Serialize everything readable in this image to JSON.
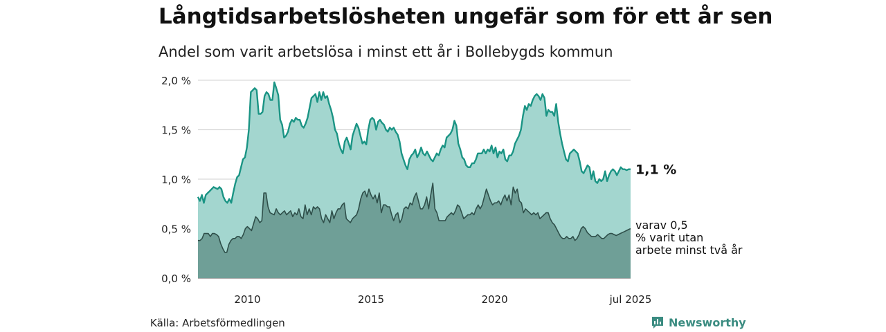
{
  "header": {
    "title": "Långtidsarbetslösheten ungefär som för ett år sen",
    "subtitle": "Andel som varit arbetslösa i minst ett år i Bollebygds kommun"
  },
  "footer": {
    "source": "Källa: Arbetsförmedlingen",
    "brand": "Newsworthy",
    "brand_icon": "bar-chart-logo-icon"
  },
  "colors": {
    "total_line": "#1a9484",
    "total_fill": "#a3d6cf",
    "sub_line": "#2f4f4a",
    "sub_fill": "#6f9f97",
    "grid": "#d9d9d9",
    "brand": "#3b8c81"
  },
  "chart_data": {
    "type": "area",
    "x_start": "2008-01",
    "x_end": "2025-07",
    "xlim": [
      "2008-01",
      "2025-07"
    ],
    "ylim": [
      0,
      2.0
    ],
    "y_ticks": [
      "0,0 %",
      "0,5 %",
      "1,0 %",
      "1,5 %",
      "2,0 %"
    ],
    "x_ticks": [
      "2010",
      "2015",
      "2020",
      "jul 2025"
    ],
    "grid": true,
    "series": [
      {
        "key": "total",
        "label": "1,1 %",
        "values": [
          0.82,
          0.78,
          0.84,
          0.76,
          0.84,
          0.86,
          0.88,
          0.9,
          0.92,
          0.91,
          0.9,
          0.92,
          0.9,
          0.82,
          0.78,
          0.76,
          0.8,
          0.76,
          0.86,
          0.95,
          1.02,
          1.04,
          1.12,
          1.2,
          1.22,
          1.32,
          1.5,
          1.88,
          1.9,
          1.92,
          1.9,
          1.66,
          1.66,
          1.68,
          1.84,
          1.88,
          1.86,
          1.8,
          1.8,
          1.98,
          1.92,
          1.85,
          1.6,
          1.55,
          1.42,
          1.44,
          1.48,
          1.56,
          1.6,
          1.58,
          1.62,
          1.6,
          1.6,
          1.54,
          1.52,
          1.56,
          1.62,
          1.72,
          1.82,
          1.84,
          1.86,
          1.78,
          1.88,
          1.8,
          1.88,
          1.82,
          1.84,
          1.76,
          1.7,
          1.62,
          1.5,
          1.46,
          1.36,
          1.3,
          1.26,
          1.38,
          1.42,
          1.36,
          1.3,
          1.44,
          1.5,
          1.56,
          1.52,
          1.44,
          1.36,
          1.38,
          1.35,
          1.5,
          1.6,
          1.62,
          1.6,
          1.5,
          1.58,
          1.6,
          1.57,
          1.55,
          1.5,
          1.48,
          1.52,
          1.5,
          1.52,
          1.48,
          1.45,
          1.38,
          1.26,
          1.2,
          1.14,
          1.1,
          1.2,
          1.24,
          1.26,
          1.3,
          1.22,
          1.26,
          1.32,
          1.26,
          1.24,
          1.28,
          1.24,
          1.2,
          1.18,
          1.22,
          1.26,
          1.24,
          1.3,
          1.34,
          1.32,
          1.42,
          1.44,
          1.46,
          1.5,
          1.59,
          1.54,
          1.36,
          1.3,
          1.22,
          1.2,
          1.14,
          1.12,
          1.12,
          1.16,
          1.16,
          1.2,
          1.26,
          1.26,
          1.26,
          1.3,
          1.26,
          1.3,
          1.28,
          1.34,
          1.26,
          1.32,
          1.22,
          1.28,
          1.26,
          1.3,
          1.2,
          1.18,
          1.24,
          1.24,
          1.28,
          1.36,
          1.4,
          1.44,
          1.5,
          1.64,
          1.74,
          1.7,
          1.76,
          1.74,
          1.8,
          1.84,
          1.86,
          1.84,
          1.8,
          1.86,
          1.82,
          1.64,
          1.7,
          1.68,
          1.68,
          1.64,
          1.76,
          1.58,
          1.46,
          1.36,
          1.28,
          1.2,
          1.18,
          1.26,
          1.28,
          1.3,
          1.28,
          1.26,
          1.18,
          1.08,
          1.06,
          1.1,
          1.14,
          1.12,
          1.0,
          1.08,
          0.98,
          0.96,
          1.0,
          0.98,
          1.0,
          1.08,
          0.98,
          1.04,
          1.08,
          1.1,
          1.08,
          1.04,
          1.08,
          1.12,
          1.1,
          1.1,
          1.09,
          1.1,
          1.1
        ]
      },
      {
        "key": "sub",
        "label": "varav 0,5 % varit utan arbete minst två år",
        "values": [
          0.38,
          0.38,
          0.4,
          0.45,
          0.45,
          0.45,
          0.42,
          0.45,
          0.45,
          0.44,
          0.42,
          0.35,
          0.3,
          0.26,
          0.26,
          0.34,
          0.38,
          0.4,
          0.4,
          0.42,
          0.42,
          0.4,
          0.44,
          0.5,
          0.52,
          0.5,
          0.48,
          0.55,
          0.62,
          0.6,
          0.56,
          0.58,
          0.86,
          0.86,
          0.72,
          0.66,
          0.65,
          0.64,
          0.7,
          0.66,
          0.64,
          0.66,
          0.68,
          0.64,
          0.66,
          0.68,
          0.62,
          0.66,
          0.64,
          0.7,
          0.62,
          0.6,
          0.74,
          0.64,
          0.7,
          0.64,
          0.72,
          0.7,
          0.72,
          0.7,
          0.6,
          0.56,
          0.64,
          0.6,
          0.56,
          0.68,
          0.6,
          0.66,
          0.7,
          0.7,
          0.74,
          0.76,
          0.6,
          0.58,
          0.56,
          0.6,
          0.62,
          0.64,
          0.7,
          0.8,
          0.86,
          0.88,
          0.82,
          0.9,
          0.84,
          0.8,
          0.84,
          0.76,
          0.86,
          0.66,
          0.74,
          0.74,
          0.72,
          0.72,
          0.64,
          0.58,
          0.64,
          0.66,
          0.56,
          0.6,
          0.7,
          0.72,
          0.7,
          0.76,
          0.74,
          0.82,
          0.86,
          0.78,
          0.7,
          0.7,
          0.74,
          0.82,
          0.7,
          0.84,
          0.96,
          0.7,
          0.66,
          0.58,
          0.58,
          0.58,
          0.58,
          0.62,
          0.64,
          0.66,
          0.64,
          0.68,
          0.74,
          0.72,
          0.66,
          0.6,
          0.62,
          0.64,
          0.64,
          0.66,
          0.64,
          0.7,
          0.74,
          0.7,
          0.74,
          0.82,
          0.9,
          0.84,
          0.78,
          0.74,
          0.76,
          0.76,
          0.78,
          0.74,
          0.8,
          0.84,
          0.78,
          0.84,
          0.74,
          0.92,
          0.86,
          0.9,
          0.78,
          0.76,
          0.66,
          0.7,
          0.68,
          0.66,
          0.64,
          0.66,
          0.64,
          0.66,
          0.6,
          0.62,
          0.64,
          0.66,
          0.66,
          0.6,
          0.56,
          0.54,
          0.5,
          0.46,
          0.42,
          0.4,
          0.4,
          0.42,
          0.4,
          0.4,
          0.42,
          0.38,
          0.4,
          0.44,
          0.5,
          0.52,
          0.5,
          0.46,
          0.44,
          0.42,
          0.42,
          0.42,
          0.44,
          0.42,
          0.4,
          0.4,
          0.42,
          0.44,
          0.45,
          0.45,
          0.44,
          0.43,
          0.44,
          0.45,
          0.46,
          0.47,
          0.48,
          0.49,
          0.5
        ]
      }
    ]
  }
}
